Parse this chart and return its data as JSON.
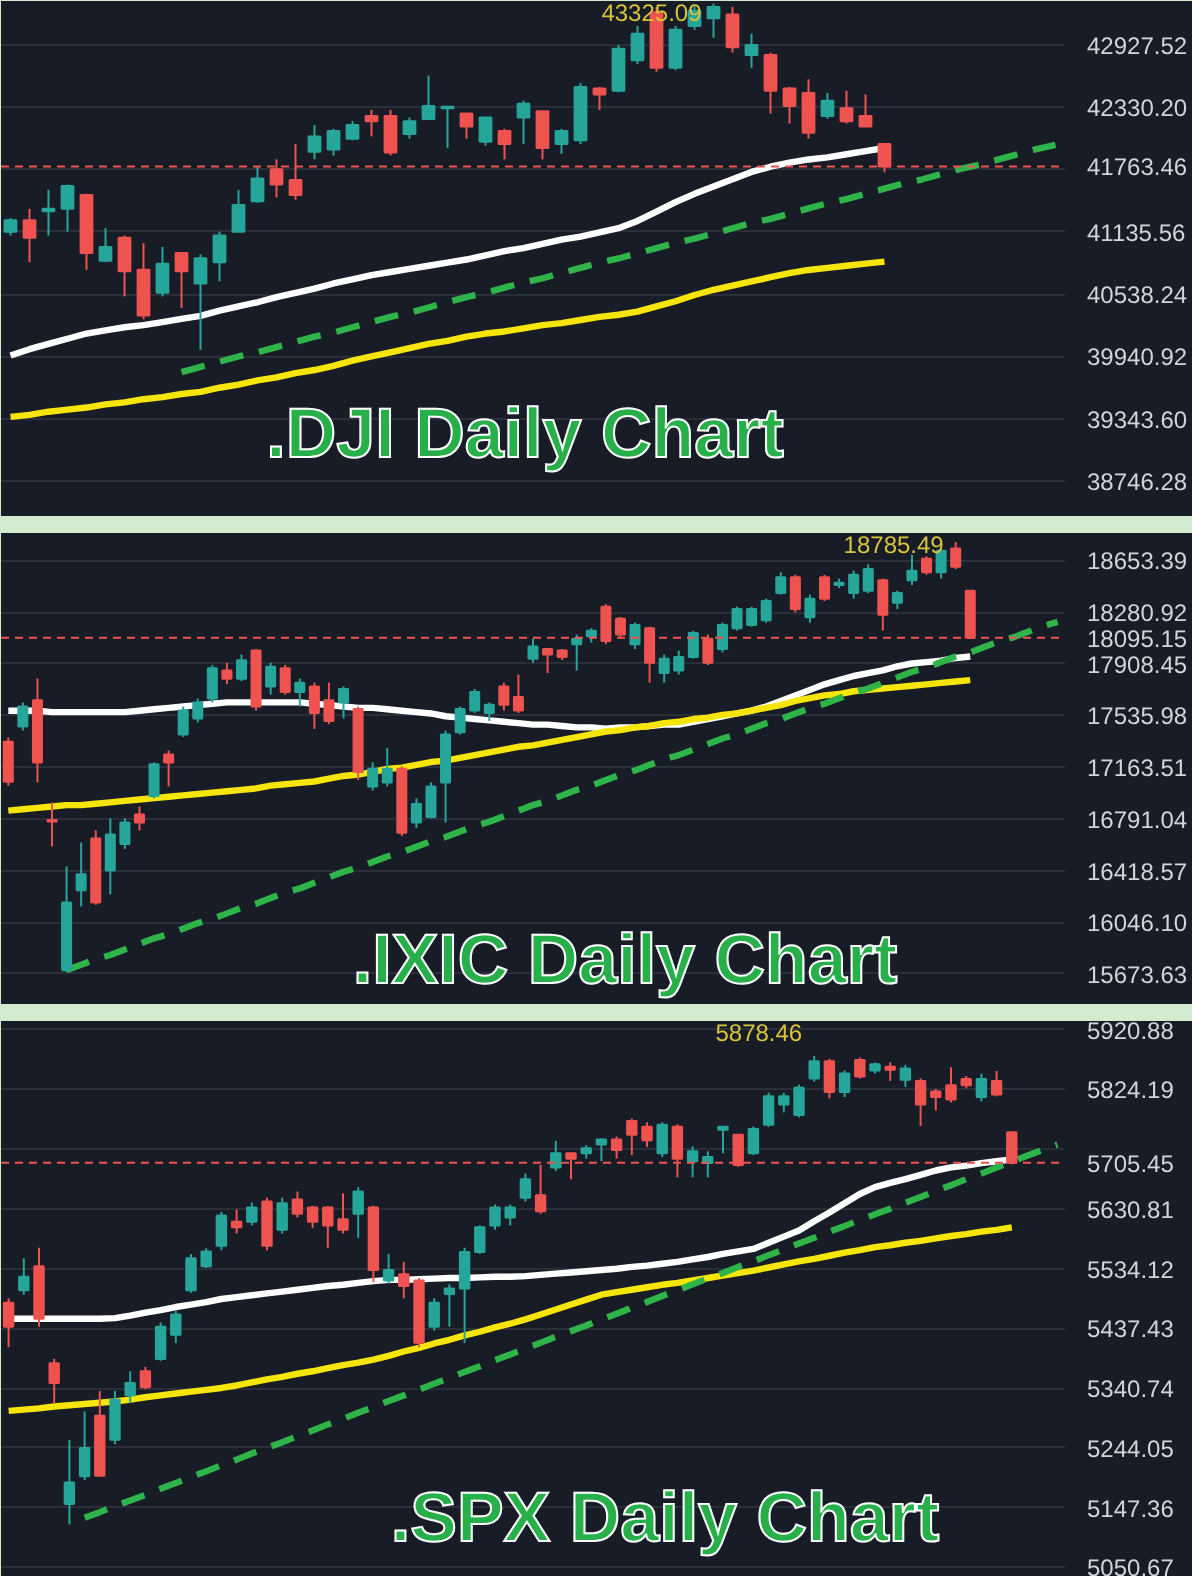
{
  "chart_data": [
    {
      "type": "candlestick",
      "title": ".DJI Daily Chart",
      "tick_labels": "y",
      "grid": "y",
      "categories": [
        null,
        null,
        null,
        null,
        null,
        null,
        null,
        null,
        null,
        null,
        null,
        null,
        null,
        null,
        null,
        null,
        null,
        null,
        null,
        null,
        null,
        null,
        null,
        null,
        null,
        null,
        null,
        null,
        null,
        null,
        null,
        null,
        null,
        null,
        null,
        null,
        null,
        null,
        null,
        null,
        null,
        null,
        null,
        null,
        null,
        null,
        null,
        null,
        null,
        null,
        null,
        null,
        null,
        null,
        null,
        null
      ],
      "ohlc": [
        [
          41137,
          41268,
          41100,
          41246
        ],
        [
          41246,
          41356,
          40844,
          41078
        ],
        [
          41334,
          41539,
          41100,
          41356
        ],
        [
          41356,
          41590,
          41137,
          41575
        ],
        [
          41488,
          41502,
          40771,
          40932
        ],
        [
          40859,
          41173,
          40845,
          40991
        ],
        [
          41078,
          41100,
          40516,
          40757
        ],
        [
          40771,
          41027,
          40296,
          40333
        ],
        [
          40552,
          40991,
          40516,
          40830
        ],
        [
          40932,
          40932,
          40406,
          40757
        ],
        [
          40640,
          40918,
          40004,
          40881
        ],
        [
          40844,
          41137,
          40662,
          41100
        ],
        [
          41137,
          41539,
          41137,
          41393
        ],
        [
          41429,
          41758,
          41414,
          41648
        ],
        [
          41736,
          41831,
          41466,
          41590
        ],
        [
          41634,
          41977,
          41444,
          41488
        ],
        [
          41904,
          42160,
          41831,
          42051
        ],
        [
          41926,
          42124,
          41868,
          42102
        ],
        [
          42029,
          42197,
          42014,
          42160
        ],
        [
          42248,
          42306,
          42051,
          42197
        ],
        [
          42248,
          42306,
          41868,
          41897
        ],
        [
          42073,
          42233,
          42029,
          42197
        ],
        [
          42219,
          42635,
          42219,
          42343
        ],
        [
          42321,
          42343,
          41941,
          42336
        ],
        [
          42270,
          42270,
          42029,
          42146
        ],
        [
          42000,
          42233,
          41963,
          42233
        ],
        [
          42102,
          42124,
          41831,
          41978
        ],
        [
          42233,
          42394,
          41978,
          42365
        ],
        [
          42292,
          42292,
          41831,
          41941
        ],
        [
          41978,
          42124,
          41882,
          42102
        ],
        [
          42014,
          42562,
          41978,
          42526
        ],
        [
          42511,
          42526,
          42306,
          42453
        ],
        [
          42489,
          42928,
          42475,
          42891
        ],
        [
          42782,
          43110,
          42745,
          43037
        ],
        [
          43242,
          43293,
          42672,
          42709
        ],
        [
          42709,
          43110,
          42687,
          43074
        ],
        [
          43110,
          43300,
          43074,
          43257
        ],
        [
          43184,
          43325.09,
          42998,
          43293
        ],
        [
          43220,
          43293,
          42855,
          42906
        ],
        [
          42833,
          43037,
          42709,
          42928
        ],
        [
          42833,
          42855,
          42270,
          42489
        ],
        [
          42511,
          42526,
          42175,
          42343
        ],
        [
          42467,
          42599,
          42029,
          42087
        ],
        [
          42248,
          42467,
          42219,
          42394
        ],
        [
          42321,
          42489,
          42175,
          42197
        ],
        [
          42248,
          42453,
          42139,
          42146
        ],
        [
          41978,
          41978,
          41707,
          41763.46
        ],
        null,
        null,
        null,
        null,
        null,
        null,
        null,
        null,
        null
      ],
      "colors": [
        "#26a69a",
        "#ef5350",
        "#26a69a",
        "#26a69a",
        "#ef5350",
        "#26a69a",
        "#ef5350",
        "#ef5350",
        "#26a69a",
        "#ef5350",
        "#26a69a",
        "#26a69a",
        "#26a69a",
        "#26a69a",
        "#ef5350",
        "#ef5350",
        "#26a69a",
        "#26a69a",
        "#26a69a",
        "#ef5350",
        "#ef5350",
        "#26a69a",
        "#26a69a",
        "#26a69a",
        "#ef5350",
        "#26a69a",
        "#ef5350",
        "#26a69a",
        "#ef5350",
        "#26a69a",
        "#26a69a",
        "#ef5350",
        "#26a69a",
        "#26a69a",
        "#ef5350",
        "#26a69a",
        "#26a69a",
        "#26a69a",
        "#ef5350",
        "#26a69a",
        "#ef5350",
        "#ef5350",
        "#ef5350",
        "#26a69a",
        "#ef5350",
        "#ef5350",
        "#ef5350",
        null,
        null,
        null,
        null,
        null,
        null,
        null,
        null,
        null
      ],
      "series": [
        {
          "type": "line",
          "color": "#ffffff",
          "values": [
            39950,
            40010,
            40060,
            40110,
            40160,
            40190,
            40220,
            40240,
            40270,
            40300,
            40330,
            40380,
            40420,
            40460,
            40510,
            40550,
            40590,
            40640,
            40680,
            40720,
            40750,
            40780,
            40810,
            40840,
            40870,
            40910,
            40950,
            40980,
            41020,
            41060,
            41090,
            41130,
            41170,
            41240,
            41330,
            41420,
            41500,
            41570,
            41640,
            41710,
            41760,
            41800,
            41830,
            41850,
            41880,
            41910,
            41940,
            null,
            null,
            null,
            null,
            null,
            null,
            null,
            null,
            null
          ]
        },
        {
          "type": "line",
          "color": "#f5e50a",
          "values": [
            39360,
            39380,
            39410,
            39430,
            39450,
            39480,
            39500,
            39530,
            39550,
            39580,
            39600,
            39640,
            39670,
            39710,
            39740,
            39780,
            39810,
            39850,
            39900,
            39940,
            39980,
            40020,
            40060,
            40090,
            40130,
            40160,
            40180,
            40210,
            40240,
            40260,
            40290,
            40320,
            40340,
            40370,
            40420,
            40470,
            40530,
            40580,
            40620,
            40660,
            40700,
            40740,
            40770,
            40790,
            40810,
            40830,
            40850,
            null,
            null,
            null,
            null,
            null,
            null,
            null,
            null,
            null
          ]
        },
        {
          "type": "line",
          "color": "#2fb44a",
          "line_style": "dashed",
          "values": [
            null,
            null,
            null,
            null,
            null,
            null,
            null,
            null,
            null,
            39790,
            39840,
            39890,
            39940,
            39980,
            40030,
            40080,
            40130,
            40170,
            40220,
            40270,
            40320,
            40360,
            40410,
            40460,
            40510,
            40550,
            40600,
            40650,
            40690,
            40740,
            40790,
            40840,
            40880,
            40930,
            40980,
            41030,
            41070,
            41120,
            41170,
            41220,
            41260,
            41310,
            41360,
            41410,
            41450,
            41500,
            41550,
            41600,
            41640,
            41690,
            41740,
            41780,
            41830,
            41880,
            41930,
            41970
          ]
        }
      ],
      "ylim": [
        38400,
        43350
      ],
      "yticks": [
        38746.28,
        {
          "value": 39343.6,
          "label": "39343.60"
        },
        39940.92,
        40538.24,
        41135.56,
        {
          "value": 41732.88,
          "label": null
        },
        {
          "value": 42330.2,
          "label": "42330.20"
        },
        42927.52
      ],
      "ref_lines": [
        {
          "axis": "y",
          "value": 41763.46,
          "label": "41763.46",
          "color": "#ef5350",
          "line_style": "dashed"
        }
      ],
      "annotations": [
        "43325.09"
      ]
    },
    {
      "type": "candlestick",
      "title": ".IXIC Daily Chart",
      "tick_labels": "y",
      "grid": "y",
      "categories": [
        null,
        null,
        null,
        null,
        null,
        null,
        null,
        null,
        null,
        null,
        null,
        null,
        null,
        null,
        null,
        null,
        null,
        null,
        null,
        null,
        null,
        null,
        null,
        null,
        null,
        null,
        null,
        null,
        null,
        null,
        null,
        null,
        null,
        null,
        null,
        null,
        null,
        null,
        null,
        null,
        null,
        null,
        null,
        null,
        null,
        null,
        null,
        null,
        null,
        null,
        null,
        null,
        null,
        null,
        null,
        null,
        null,
        null,
        null,
        null,
        null,
        null,
        null,
        null,
        null,
        null,
        null,
        null,
        null,
        null,
        null,
        null,
        null
      ],
      "ohlc": [
        [
          17347,
          17376,
          17030,
          17059
        ],
        [
          17456,
          17629,
          17427,
          17600
        ],
        [
          17646,
          17801,
          17053,
          17197
        ],
        [
          16783,
          16909,
          16592,
          16771
        ],
        [
          15700,
          16448,
          15688,
          16189
        ],
        [
          16276,
          16621,
          16160,
          16391
        ],
        [
          16650,
          16708,
          16172,
          16189
        ],
        [
          16419,
          16794,
          16247,
          16679
        ],
        [
          16610,
          16794,
          16575,
          16765
        ],
        [
          16823,
          16880,
          16707,
          16765
        ],
        [
          16955,
          17197,
          16938,
          17185
        ],
        [
          17254,
          17283,
          17024,
          17197
        ],
        [
          17398,
          17600,
          17381,
          17571
        ],
        [
          17514,
          17658,
          17485,
          17629
        ],
        [
          17658,
          17899,
          17629,
          17876
        ],
        [
          17859,
          17916,
          17761,
          17801
        ],
        [
          17801,
          17974,
          17784,
          17934
        ],
        [
          18003,
          18014,
          17571,
          17600
        ],
        [
          17744,
          17916,
          17686,
          17887
        ],
        [
          17876,
          17899,
          17686,
          17704
        ],
        [
          17704,
          17801,
          17600,
          17772
        ],
        [
          17744,
          17772,
          17439,
          17554
        ],
        [
          17646,
          17772,
          17473,
          17496
        ],
        [
          17629,
          17744,
          17514,
          17726
        ],
        [
          17583,
          17600,
          17070,
          17128
        ],
        [
          17024,
          17197,
          16996,
          17151
        ],
        [
          17053,
          17300,
          17024,
          17151
        ],
        [
          17151,
          17168,
          16667,
          16690
        ],
        [
          16765,
          16938,
          16725,
          16897
        ],
        [
          16805,
          17053,
          16794,
          17024
        ],
        [
          17053,
          17427,
          16765,
          17398
        ],
        [
          17415,
          17600,
          17398,
          17583
        ],
        [
          17571,
          17726,
          17554,
          17704
        ],
        [
          17554,
          17629,
          17496,
          17612
        ],
        [
          17744,
          17772,
          17571,
          17612
        ],
        [
          17669,
          17830,
          17554,
          17571
        ],
        [
          17945,
          18089,
          17916,
          18032
        ],
        [
          18014,
          18014,
          17842,
          17974
        ],
        [
          18003,
          18014,
          17934,
          17957
        ],
        [
          18049,
          18118,
          17859,
          18089
        ],
        [
          18106,
          18164,
          18060,
          18146
        ],
        [
          18319,
          18337,
          18049,
          18072
        ],
        [
          18233,
          18245,
          18089,
          18118
        ],
        [
          18049,
          18204,
          18014,
          18187
        ],
        [
          18164,
          18175,
          17772,
          17916
        ],
        [
          17841,
          17974,
          17772,
          17945
        ],
        [
          17859,
          18003,
          17830,
          17957
        ],
        [
          17957,
          18146,
          17945,
          18129
        ],
        [
          18089,
          18118,
          17899,
          17916
        ],
        [
          18014,
          18204,
          17991,
          18187
        ],
        [
          18164,
          18319,
          18147,
          18302
        ],
        [
          18187,
          18319,
          18175,
          18302
        ],
        [
          18221,
          18377,
          18204,
          18360
        ],
        [
          18417,
          18567,
          18406,
          18532
        ],
        [
          18532,
          18549,
          18279,
          18302
        ],
        [
          18244,
          18406,
          18204,
          18377
        ],
        [
          18532,
          18549,
          18360,
          18377
        ],
        [
          18475,
          18521,
          18452,
          18492
        ],
        [
          18417,
          18578,
          18377,
          18549
        ],
        [
          18434,
          18624,
          18417,
          18590
        ],
        [
          18509,
          18521,
          18147,
          18262
        ],
        [
          18348,
          18434,
          18302,
          18417
        ],
        [
          18509,
          18694,
          18475,
          18578
        ],
        [
          18665,
          18682,
          18550,
          18567
        ],
        [
          18567,
          18739,
          18521,
          18722
        ],
        [
          18739,
          18785.49,
          18590,
          18607
        ],
        [
          18434,
          18434,
          18090,
          18095.15
        ],
        null,
        null,
        null,
        null,
        null,
        null
      ],
      "colors": [
        "#ef5350",
        "#26a69a",
        "#ef5350",
        "#ef5350",
        "#26a69a",
        "#26a69a",
        "#ef5350",
        "#26a69a",
        "#26a69a",
        "#ef5350",
        "#26a69a",
        "#ef5350",
        "#26a69a",
        "#26a69a",
        "#26a69a",
        "#ef5350",
        "#26a69a",
        "#ef5350",
        "#26a69a",
        "#ef5350",
        "#26a69a",
        "#ef5350",
        "#ef5350",
        "#26a69a",
        "#ef5350",
        "#26a69a",
        "#26a69a",
        "#ef5350",
        "#26a69a",
        "#26a69a",
        "#26a69a",
        "#26a69a",
        "#26a69a",
        "#26a69a",
        "#ef5350",
        "#ef5350",
        "#26a69a",
        "#ef5350",
        "#ef5350",
        "#26a69a",
        "#26a69a",
        "#ef5350",
        "#ef5350",
        "#26a69a",
        "#ef5350",
        "#26a69a",
        "#26a69a",
        "#26a69a",
        "#ef5350",
        "#26a69a",
        "#26a69a",
        "#26a69a",
        "#26a69a",
        "#26a69a",
        "#ef5350",
        "#26a69a",
        "#ef5350",
        "#26a69a",
        "#26a69a",
        "#26a69a",
        "#ef5350",
        "#26a69a",
        "#26a69a",
        "#ef5350",
        "#26a69a",
        "#ef5350",
        "#ef5350",
        null,
        null,
        null,
        null,
        null,
        null
      ],
      "series": [
        {
          "type": "line",
          "color": "#ffffff",
          "values": [
            17570,
            17570,
            17570,
            17560,
            17560,
            17560,
            17560,
            17560,
            17560,
            17570,
            17580,
            17590,
            17600,
            17610,
            17620,
            17630,
            17630,
            17630,
            17630,
            17630,
            17630,
            17620,
            17610,
            17600,
            17590,
            17590,
            17580,
            17570,
            17560,
            17550,
            17530,
            17520,
            17510,
            17500,
            17490,
            17480,
            17470,
            17470,
            17460,
            17450,
            17450,
            17440,
            17450,
            17450,
            17460,
            17470,
            17470,
            17490,
            17510,
            17530,
            17550,
            17570,
            17600,
            17640,
            17680,
            17720,
            17760,
            17790,
            17820,
            17840,
            17860,
            17890,
            17910,
            17920,
            17930,
            17950,
            17960,
            null,
            null,
            null,
            null,
            null,
            null
          ]
        },
        {
          "type": "line",
          "color": "#f5e50a",
          "values": [
            16850,
            16860,
            16870,
            16880,
            16890,
            16890,
            16900,
            16910,
            16920,
            16930,
            16940,
            16950,
            16960,
            16970,
            16980,
            16990,
            17000,
            17010,
            17030,
            17040,
            17050,
            17060,
            17080,
            17100,
            17110,
            17130,
            17150,
            17160,
            17180,
            17200,
            17210,
            17230,
            17250,
            17270,
            17290,
            17310,
            17320,
            17340,
            17360,
            17380,
            17400,
            17420,
            17430,
            17450,
            17460,
            17480,
            17490,
            17510,
            17520,
            17540,
            17550,
            17570,
            17590,
            17610,
            17640,
            17660,
            17680,
            17690,
            17710,
            17720,
            17730,
            17740,
            17750,
            17760,
            17770,
            17780,
            17790,
            null,
            null,
            null,
            null,
            null,
            null
          ]
        },
        {
          "type": "line",
          "color": "#2fb44a",
          "line_style": "dashed",
          "values": [
            null,
            null,
            null,
            null,
            15700,
            15740,
            15780,
            15810,
            15850,
            15890,
            15930,
            15960,
            16000,
            16040,
            16070,
            16110,
            16150,
            16180,
            16220,
            16260,
            16290,
            16330,
            16370,
            16410,
            16440,
            16480,
            16520,
            16550,
            16590,
            16630,
            16660,
            16700,
            16740,
            16770,
            16810,
            16850,
            16890,
            16920,
            16960,
            17000,
            17030,
            17070,
            17110,
            17140,
            17180,
            17220,
            17250,
            17290,
            17330,
            17370,
            17400,
            17440,
            17480,
            17510,
            17550,
            17590,
            17620,
            17660,
            17700,
            17730,
            17770,
            17810,
            17850,
            17880,
            17920,
            17960,
            17990,
            18030,
            18070,
            18100,
            18140,
            18180,
            18210
          ]
        }
      ],
      "ylim": [
        15450,
        18850
      ],
      "yticks": [
        15673.63,
        {
          "value": 16046.1,
          "label": "16046.10"
        },
        16418.57,
        16791.04,
        17163.51,
        17535.98,
        17908.45,
        18280.92,
        18653.39
      ],
      "ref_lines": [
        {
          "axis": "y",
          "value": 18095.15,
          "label": "18095.15",
          "color": "#ef5350",
          "line_style": "dashed"
        }
      ],
      "annotations": [
        "18785.49"
      ]
    },
    {
      "type": "candlestick",
      "title": ".SPX Daily Chart",
      "tick_labels": "y",
      "grid": "y",
      "categories": [
        null,
        null,
        null,
        null,
        null,
        null,
        null,
        null,
        null,
        null,
        null,
        null,
        null,
        null,
        null,
        null,
        null,
        null,
        null,
        null,
        null,
        null,
        null,
        null,
        null,
        null,
        null,
        null,
        null,
        null,
        null,
        null,
        null,
        null,
        null,
        null,
        null,
        null,
        null,
        null,
        null,
        null,
        null,
        null,
        null,
        null,
        null,
        null,
        null,
        null,
        null,
        null,
        null,
        null,
        null,
        null,
        null,
        null,
        null,
        null,
        null,
        null,
        null,
        null,
        null,
        null,
        null,
        null,
        null,
        null
      ],
      "ohlc": [
        [
          5479,
          5486,
          5407,
          5440
        ],
        [
          5499,
          5551,
          5492,
          5521
        ],
        [
          5538,
          5568,
          5440,
          5453
        ],
        [
          5381,
          5388,
          5316,
          5349
        ],
        [
          5153,
          5257,
          5120,
          5188
        ],
        [
          5198,
          5303,
          5192,
          5244
        ],
        [
          5296,
          5336,
          5198,
          5199
        ],
        [
          5257,
          5336,
          5250,
          5322
        ],
        [
          5329,
          5368,
          5316,
          5349
        ],
        [
          5368,
          5375,
          5339,
          5342
        ],
        [
          5388,
          5447,
          5385,
          5440
        ],
        [
          5427,
          5466,
          5414,
          5460
        ],
        [
          5499,
          5558,
          5495,
          5551
        ],
        [
          5538,
          5567,
          5535,
          5562
        ],
        [
          5571,
          5626,
          5564,
          5620
        ],
        [
          5610,
          5630,
          5591,
          5601
        ],
        [
          5610,
          5641,
          5604,
          5633
        ],
        [
          5643,
          5649,
          5564,
          5571
        ],
        [
          5597,
          5649,
          5591,
          5640
        ],
        [
          5646,
          5659,
          5617,
          5623
        ],
        [
          5633,
          5636,
          5600,
          5610
        ],
        [
          5633,
          5636,
          5568,
          5604
        ],
        [
          5614,
          5656,
          5591,
          5597
        ],
        [
          5623,
          5666,
          5584,
          5659
        ],
        [
          5633,
          5636,
          5512,
          5532
        ],
        [
          5515,
          5558,
          5510,
          5532
        ],
        [
          5525,
          5545,
          5486,
          5506
        ],
        [
          5515,
          5519,
          5407,
          5414
        ],
        [
          5440,
          5486,
          5434,
          5479
        ],
        [
          5493,
          5509,
          5440,
          5502
        ],
        [
          5502,
          5568,
          5414,
          5561
        ],
        [
          5561,
          5604,
          5558,
          5601
        ],
        [
          5604,
          5638,
          5597,
          5633
        ],
        [
          5617,
          5638,
          5604,
          5633
        ],
        [
          5649,
          5688,
          5643,
          5679
        ],
        [
          5653,
          5702,
          5623,
          5627
        ],
        [
          5698,
          5741,
          5692,
          5721
        ],
        [
          5721,
          5721,
          5679,
          5712
        ],
        [
          5721,
          5734,
          5712,
          5729
        ],
        [
          5735,
          5745,
          5708,
          5743
        ],
        [
          5743,
          5748,
          5712,
          5726
        ],
        [
          5773,
          5777,
          5718,
          5751
        ],
        [
          5764,
          5771,
          5731,
          5742
        ],
        [
          5721,
          5771,
          5715,
          5767
        ],
        [
          5764,
          5768,
          5682,
          5712
        ],
        [
          5708,
          5732,
          5682,
          5724
        ],
        [
          5705,
          5724,
          5682,
          5715
        ],
        [
          5759,
          5764,
          5721,
          5764
        ],
        [
          5751,
          5751,
          5699,
          5702
        ],
        [
          5721,
          5764,
          5718,
          5760
        ],
        [
          5767,
          5819,
          5764,
          5813
        ],
        [
          5800,
          5819,
          5787,
          5813
        ],
        [
          5783,
          5832,
          5779,
          5827
        ],
        [
          5842,
          5878.46,
          5837,
          5870
        ],
        [
          5870,
          5874,
          5810,
          5820
        ],
        [
          5820,
          5855,
          5812,
          5850
        ],
        [
          5872,
          5876,
          5842,
          5845
        ],
        [
          5855,
          5868,
          5850,
          5865
        ],
        [
          5861,
          5868,
          5838,
          5856
        ],
        [
          5840,
          5864,
          5828,
          5858
        ],
        [
          5838,
          5842,
          5765,
          5800
        ],
        [
          5821,
          5825,
          5790,
          5812
        ],
        [
          5831,
          5860,
          5803,
          5808
        ],
        [
          5841,
          5846,
          5826,
          5831
        ],
        [
          5812,
          5850,
          5805,
          5841
        ],
        [
          5838,
          5854,
          5813,
          5816
        ],
        [
          5755,
          5755,
          5703,
          5705.45
        ],
        null,
        null,
        null
      ],
      "colors": [
        "#ef5350",
        "#26a69a",
        "#ef5350",
        "#ef5350",
        "#26a69a",
        "#26a69a",
        "#ef5350",
        "#26a69a",
        "#26a69a",
        "#ef5350",
        "#26a69a",
        "#26a69a",
        "#26a69a",
        "#26a69a",
        "#26a69a",
        "#ef5350",
        "#26a69a",
        "#ef5350",
        "#26a69a",
        "#ef5350",
        "#ef5350",
        "#ef5350",
        "#ef5350",
        "#26a69a",
        "#ef5350",
        "#26a69a",
        "#ef5350",
        "#ef5350",
        "#26a69a",
        "#26a69a",
        "#26a69a",
        "#26a69a",
        "#26a69a",
        "#26a69a",
        "#26a69a",
        "#ef5350",
        "#26a69a",
        "#ef5350",
        "#26a69a",
        "#26a69a",
        "#ef5350",
        "#ef5350",
        "#ef5350",
        "#26a69a",
        "#ef5350",
        "#26a69a",
        "#26a69a",
        "#26a69a",
        "#ef5350",
        "#26a69a",
        "#26a69a",
        "#26a69a",
        "#26a69a",
        "#26a69a",
        "#ef5350",
        "#26a69a",
        "#ef5350",
        "#26a69a",
        "#ef5350",
        "#26a69a",
        "#ef5350",
        "#ef5350",
        "#ef5350",
        "#ef5350",
        "#26a69a",
        "#ef5350",
        "#ef5350",
        null,
        null,
        null
      ],
      "series": [
        {
          "type": "line",
          "color": "#ffffff",
          "values": [
            5453,
            5453,
            5453,
            5453,
            5453,
            5453,
            5453,
            5454,
            5458,
            5463,
            5467,
            5472,
            5476,
            5480,
            5485,
            5488,
            5491,
            5494,
            5497,
            5500,
            5503,
            5506,
            5508,
            5511,
            5514,
            5516,
            5516,
            5517,
            5518,
            5519,
            5519,
            5520,
            5521,
            5521,
            5522,
            5524,
            5526,
            5528,
            5530,
            5532,
            5534,
            5537,
            5539,
            5542,
            5545,
            5549,
            5553,
            5558,
            5562,
            5566,
            5576,
            5586,
            5596,
            5611,
            5625,
            5640,
            5655,
            5666,
            5673,
            5679,
            5686,
            5693,
            5698,
            5701,
            5705,
            5708,
            5711,
            null,
            null,
            null
          ]
        },
        {
          "type": "line",
          "color": "#f5e50a",
          "values": [
            5304,
            5306,
            5308,
            5311,
            5313,
            5315,
            5317,
            5319,
            5322,
            5326,
            5329,
            5332,
            5335,
            5338,
            5341,
            5345,
            5350,
            5355,
            5359,
            5364,
            5368,
            5373,
            5378,
            5382,
            5387,
            5393,
            5400,
            5406,
            5413,
            5419,
            5426,
            5432,
            5439,
            5445,
            5452,
            5460,
            5468,
            5476,
            5484,
            5492,
            5496,
            5500,
            5504,
            5508,
            5511,
            5515,
            5519,
            5523,
            5527,
            5531,
            5536,
            5541,
            5546,
            5550,
            5555,
            5560,
            5564,
            5569,
            5572,
            5576,
            5579,
            5583,
            5587,
            5590,
            5594,
            5597,
            5601,
            null,
            null,
            null
          ]
        },
        {
          "type": "line",
          "color": "#2fb44a",
          "line_style": "dashed",
          "values": [
            null,
            null,
            null,
            null,
            null,
            5131,
            5140,
            5150,
            5159,
            5168,
            5178,
            5187,
            5197,
            5206,
            5216,
            5225,
            5235,
            5244,
            5253,
            5263,
            5272,
            5282,
            5291,
            5301,
            5310,
            5320,
            5329,
            5338,
            5348,
            5357,
            5367,
            5376,
            5386,
            5395,
            5405,
            5414,
            5424,
            5433,
            5442,
            5452,
            5461,
            5471,
            5480,
            5490,
            5499,
            5509,
            5518,
            5527,
            5537,
            5546,
            5556,
            5565,
            5575,
            5584,
            5594,
            5603,
            5613,
            5622,
            5631,
            5641,
            5650,
            5660,
            5669,
            5679,
            5688,
            5698,
            5707,
            5717,
            5726,
            5735
          ]
        }
      ],
      "ylim": [
        5035,
        5935
      ],
      "yticks": [
        5050.67,
        5147.36,
        5244.05,
        5340.74,
        5437.43,
        5534.12,
        5630.81,
        {
          "value": 5727.5,
          "label": null
        },
        5824.19,
        5920.88
      ],
      "ref_lines": [
        {
          "axis": "y",
          "value": 5705.45,
          "label": "5705.45",
          "color": "#ef5350",
          "line_style": "dashed"
        }
      ],
      "annotations": [
        "5878.46"
      ]
    }
  ]
}
